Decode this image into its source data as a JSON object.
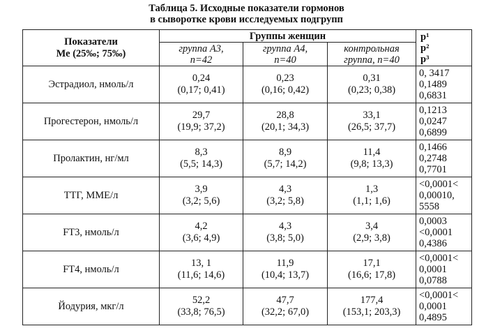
{
  "caption": {
    "line1": "Таблица 5. Исходные показатели гормонов",
    "line2": "в сыворотке крови исследуемых подгрупп"
  },
  "header": {
    "indicator_line1": "Показатели",
    "indicator_line2": "Ме (25‰; 75‰)",
    "groups_title": "Группы женщин",
    "groups": [
      {
        "line1": "группа А3,",
        "line2": "n=42"
      },
      {
        "line1": "группа А4,",
        "line2": "n=40"
      },
      {
        "line1": "контрольная",
        "line2": "группа, n=40"
      }
    ],
    "p": [
      "p¹",
      "p²",
      "p³"
    ]
  },
  "rows": [
    {
      "label": "Эстрадиол, нмоль/л",
      "g1": [
        "0,24",
        "(0,17; 0,41)"
      ],
      "g2": [
        "0,23",
        "(0,16; 0,42)"
      ],
      "g3": [
        "0,31",
        "(0,23; 0,38)"
      ],
      "p": [
        "0, 3417",
        "0,1489",
        "0,6831"
      ]
    },
    {
      "label": "Прогестерон, нмоль/л",
      "g1": [
        "29,7",
        "(19,9; 37,2)"
      ],
      "g2": [
        "28,8",
        "(20,1; 34,3)"
      ],
      "g3": [
        "33,1",
        "(26,5; 37,7)"
      ],
      "p": [
        "0,1213",
        "0,0247",
        "0,6899"
      ]
    },
    {
      "label": "Пролактин, нг/мл",
      "g1": [
        "8,3",
        "(5,5; 14,3)"
      ],
      "g2": [
        "8,9",
        "(5,7; 14,2)"
      ],
      "g3": [
        "11,4",
        "(9,8; 13,3)"
      ],
      "p": [
        "0,1466",
        "0,2748",
        "0,7701"
      ]
    },
    {
      "label": "ТТГ, ММЕ/л",
      "g1": [
        "3,9",
        "(3,2; 5,6)"
      ],
      "g2": [
        "4,3",
        "(3,2; 5,8)"
      ],
      "g3": [
        "1,3",
        "(1,1; 1,6)"
      ],
      "p": [
        "<0,0001<",
        "0,00010,",
        "5558"
      ]
    },
    {
      "label": "FT3, нмоль/л",
      "g1": [
        "4,2",
        "(3,6; 4,9)"
      ],
      "g2": [
        "4,3",
        "(3,8; 5,0)"
      ],
      "g3": [
        "3,4",
        "(2,9; 3,8)"
      ],
      "p": [
        "0,0003",
        "<0,0001",
        "0,4386"
      ]
    },
    {
      "label": "FT4, нмоль/л",
      "g1": [
        "13, 1",
        "(11,6; 14,6)"
      ],
      "g2": [
        "11,9",
        "(10,4; 13,7)"
      ],
      "g3": [
        "17,1",
        "(16,6; 17,8)"
      ],
      "p": [
        "<0,0001<",
        "0,0001",
        "0,0788"
      ]
    },
    {
      "label": "Йодурия, мкг/л",
      "g1": [
        "52,2",
        "(33,8; 76,5)"
      ],
      "g2": [
        "47,7",
        "(32,2; 67,0)"
      ],
      "g3": [
        "177,4",
        "(153,1; 203,3)"
      ],
      "p": [
        "<0,0001<",
        "0,0001",
        "0,4895"
      ]
    }
  ]
}
